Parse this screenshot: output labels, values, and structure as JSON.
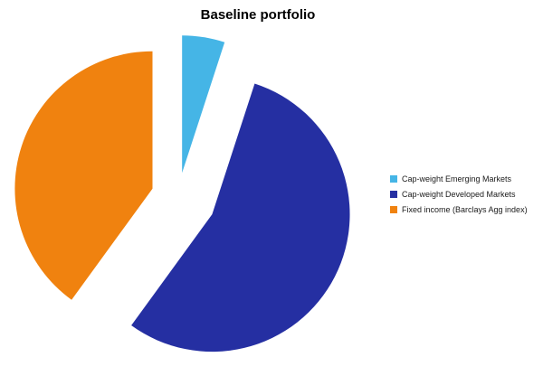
{
  "chart_data": {
    "type": "pie",
    "title": "Baseline portfolio",
    "labels": [
      "Cap-weight Emerging Markets",
      "Cap-weight Developed Markets",
      "Fixed income (Barclays Agg index)"
    ],
    "values": [
      5,
      55,
      40
    ],
    "unit": "percent_of_portfolio",
    "colors": [
      "#45B5E6",
      "#252FA2",
      "#F0820F"
    ],
    "background_color": "#FFFFFF",
    "exploded": true,
    "start_angle_deg": 0,
    "direction": "clockwise",
    "legend_position": "right",
    "data_labels_shown": false,
    "axes_shown": false
  }
}
